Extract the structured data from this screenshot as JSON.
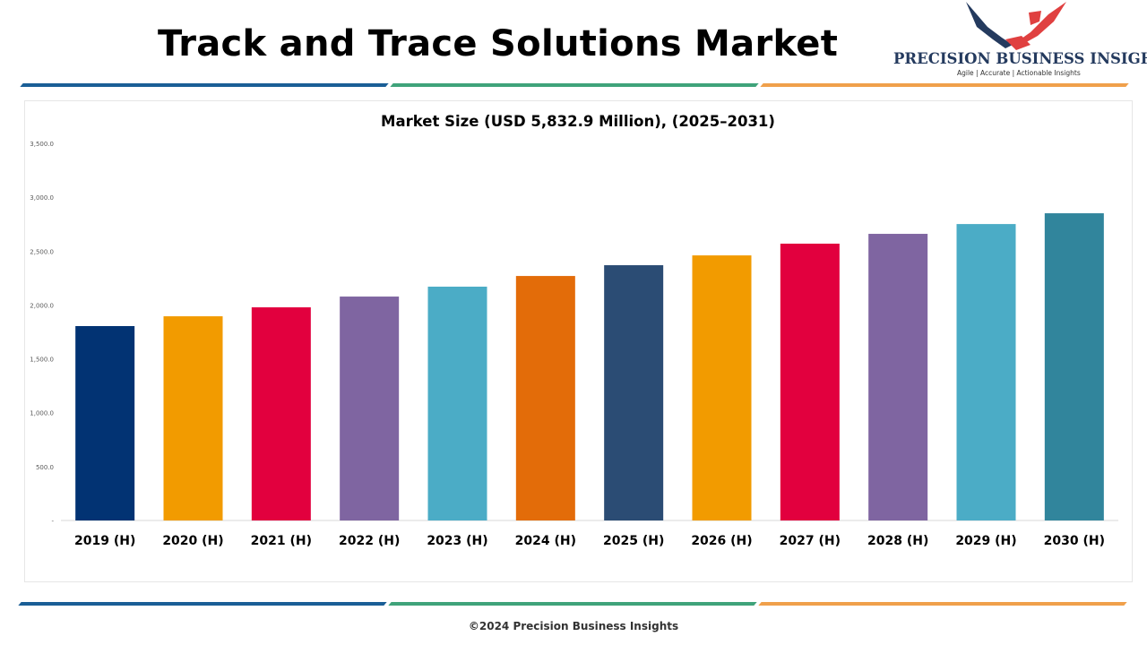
{
  "header": {
    "title": "Track and Trace Solutions Market"
  },
  "logo": {
    "name": "PRECISION BUSINESS INSIGHTS",
    "tagline": "Agile | Accurate | Actionable Insights"
  },
  "footer": {
    "text": "©2024 Precision Business Insights"
  },
  "colors": {
    "stripe_blue": "#1a5e96",
    "stripe_green": "#3fa37a",
    "stripe_orange": "#f0a04b"
  },
  "chart_data": {
    "type": "bar",
    "title": "Market Size (USD 5,832.9 Million), (2025–2031)",
    "xlabel": "",
    "ylabel": "",
    "ylim": [
      0,
      3500
    ],
    "yticks": [
      0,
      500,
      1000,
      1500,
      2000,
      2500,
      3000,
      3500
    ],
    "ytick_labels": [
      "-",
      "500.0",
      "1,000.0",
      "1,500.0",
      "2,000.0",
      "2,500.0",
      "3,000.0",
      "3,500.0"
    ],
    "grid": false,
    "categories": [
      "2019 (H)",
      "2020 (H)",
      "2021 (H)",
      "2022 (H)",
      "2023 (H)",
      "2024 (H)",
      "2025 (H)",
      "2026 (H)",
      "2027 (H)",
      "2028 (H)",
      "2029 (H)",
      "2030 (H)"
    ],
    "values": [
      1804,
      1895,
      1978,
      2078,
      2170,
      2269,
      2369,
      2460,
      2569,
      2660,
      2751,
      2851
    ],
    "bar_colors": [
      "#023373",
      "#f29b00",
      "#e2003e",
      "#7f65a1",
      "#4bacc6",
      "#e36c09",
      "#2b4c74",
      "#f29b00",
      "#e2003e",
      "#7f65a1",
      "#4bacc6",
      "#31859c"
    ]
  }
}
